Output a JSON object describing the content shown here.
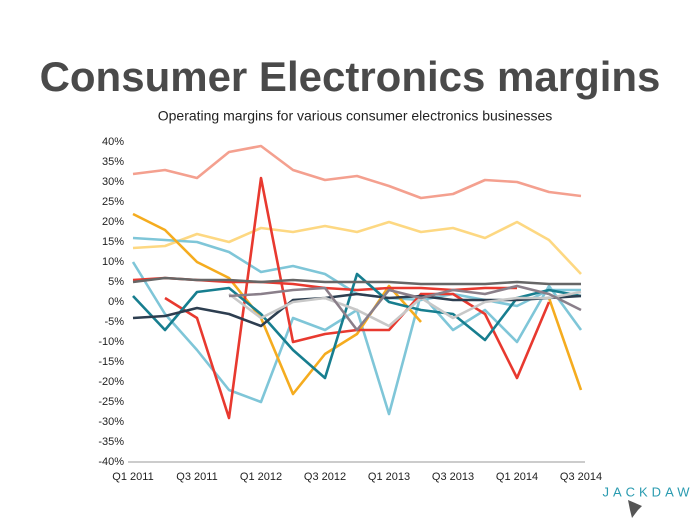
{
  "chart_data": {
    "type": "line",
    "title": "Consumer Electronics margins",
    "subtitle": "Operating margins for various consumer electronics businesses",
    "logo": "JACKDAW",
    "categories": [
      "Q1 2011",
      null,
      "Q3 2011",
      null,
      "Q1 2012",
      null,
      "Q3 2012",
      null,
      "Q1 2013",
      null,
      "Q3 2013",
      null,
      "Q1 2014",
      null,
      "Q3 2014"
    ],
    "ylim": [
      -40,
      40
    ],
    "yticks": [
      {
        "value": 40,
        "label": "40%"
      },
      {
        "value": 35,
        "label": "35%"
      },
      {
        "value": 30,
        "label": "30%"
      },
      {
        "value": 25,
        "label": "25%"
      },
      {
        "value": 20,
        "label": "20%"
      },
      {
        "value": 15,
        "label": "15%"
      },
      {
        "value": 10,
        "label": "10%"
      },
      {
        "value": 5,
        "label": "5%"
      },
      {
        "value": 0,
        "label": "0%"
      },
      {
        "value": -5,
        "label": "-5%"
      },
      {
        "value": -10,
        "label": "-10%"
      },
      {
        "value": -15,
        "label": "-15%"
      },
      {
        "value": -20,
        "label": "-20%"
      },
      {
        "value": -25,
        "label": "-25%"
      },
      {
        "value": -30,
        "label": "-30%"
      },
      {
        "value": -35,
        "label": "-35%"
      },
      {
        "value": -40,
        "label": "-40%"
      }
    ],
    "grid": false,
    "series": [
      {
        "color": "#f4a08f",
        "values": [
          32,
          33,
          31,
          37.5,
          39,
          33,
          30.5,
          31.5,
          29,
          26,
          27,
          30.5,
          30,
          27.5,
          26.5
        ]
      },
      {
        "color": "#fdd882",
        "values": [
          13.5,
          14,
          17,
          15,
          18.5,
          17.5,
          19,
          17.5,
          20,
          17.5,
          18.5,
          16,
          20,
          15.5,
          7
        ]
      },
      {
        "color": "#7fc6d8",
        "values": [
          16,
          15.5,
          15,
          12.5,
          7.5,
          9,
          7,
          2,
          1,
          0.5,
          2,
          0.5,
          -1,
          3,
          3
        ]
      },
      {
        "color": "#7fc6d8",
        "values": [
          10,
          -3,
          -12,
          -22,
          -25,
          -4,
          -7,
          -2,
          -28,
          2,
          -7,
          -2,
          -10,
          4,
          -7
        ]
      },
      {
        "color": "#f5ac1f",
        "values": [
          22,
          18,
          10,
          6,
          -4,
          -23,
          -13,
          -8,
          4,
          -5,
          null,
          null,
          null,
          1,
          -22
        ]
      },
      {
        "color": "#e8392f",
        "values": [
          null,
          1,
          -4,
          -29,
          31,
          -10,
          -8,
          -7,
          -7,
          2,
          2,
          -3,
          -19,
          0,
          null
        ]
      },
      {
        "color": "#e8392f",
        "values": [
          5.5,
          6,
          5.5,
          5,
          5,
          4.5,
          3.5,
          3,
          3.5,
          3.5,
          3,
          3.5,
          3.5,
          null,
          null
        ]
      },
      {
        "color": "#177e8f",
        "values": [
          1.5,
          -7,
          2.5,
          3.5,
          -3,
          -12,
          -19,
          7,
          0,
          -2,
          -3,
          -9.5,
          1,
          3,
          1.5
        ]
      },
      {
        "color": "#2d3e50",
        "values": [
          -4,
          -3.5,
          -1.5,
          -3,
          -6,
          0.5,
          1,
          2,
          1,
          1.5,
          0.5,
          0.5,
          0.5,
          1,
          1.5
        ]
      },
      {
        "color": "#666666",
        "values": [
          5,
          6,
          5.5,
          5.5,
          5,
          5.5,
          5,
          5,
          5,
          4.5,
          4.5,
          4.5,
          5,
          4.5,
          4.5
        ]
      },
      {
        "color": "#c8c8c8",
        "values": [
          null,
          null,
          null,
          2,
          -4,
          0,
          1,
          -2,
          -6,
          1,
          -4,
          0,
          1,
          1,
          2.5
        ]
      },
      {
        "color": "#8a7f8a",
        "values": [
          null,
          null,
          null,
          1.5,
          2,
          3,
          3.5,
          -7,
          3,
          1,
          3,
          2,
          4,
          2,
          -2
        ]
      }
    ]
  }
}
